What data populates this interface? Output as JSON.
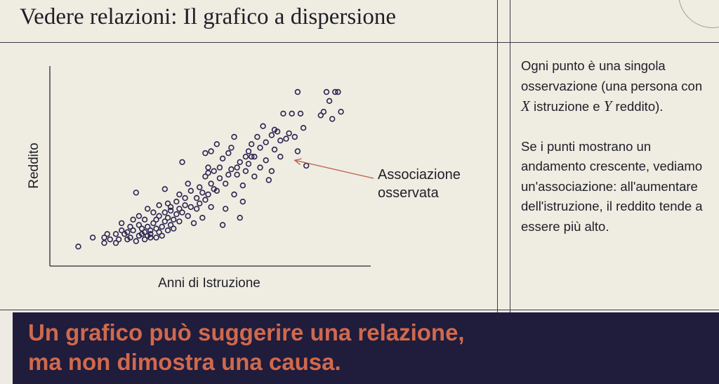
{
  "slide": {
    "title": "Vedere relazioni: Il grafico a dispersione",
    "side_paragraph_1": {
      "part1": "Ogni punto è una singola osservazione (una persona con ",
      "var_x": "X",
      "part2": " istruzione e ",
      "var_y": "Y",
      "part3": " reddito)."
    },
    "side_paragraph_2": "Se i punti mostrano un andamento crescente, vediamo un'associazione: all'aumentare dell'istruzione, il reddito tende a essere più alto.",
    "banner_line_1": "Un grafico può suggerire una relazione,",
    "banner_line_2": "ma non dimostra una causa."
  },
  "colors": {
    "background": "#efece2",
    "point_stroke": "#2a2450",
    "arrow": "#b85c4a",
    "banner_bg": "#1f1c3c",
    "banner_text": "#d0694c"
  },
  "chart_data": {
    "type": "scatter",
    "xlabel": "Anni di Istruzione",
    "ylabel": "Reddito",
    "xlim": [
      0,
      100
    ],
    "ylim": [
      0,
      100
    ],
    "axis_ticks": false,
    "grid": false,
    "annotation": {
      "text_line_1": "Associazione",
      "text_line_2": "osservata",
      "points_to": [
        80,
        53
      ]
    },
    "points": [
      [
        5,
        5
      ],
      [
        10,
        10
      ],
      [
        14,
        10
      ],
      [
        14,
        7
      ],
      [
        15,
        12
      ],
      [
        16,
        9
      ],
      [
        18,
        12
      ],
      [
        18,
        7
      ],
      [
        19,
        9
      ],
      [
        20,
        18
      ],
      [
        20,
        14
      ],
      [
        21,
        12
      ],
      [
        22,
        9
      ],
      [
        22,
        13
      ],
      [
        23,
        16
      ],
      [
        23,
        10
      ],
      [
        24,
        20
      ],
      [
        24,
        14
      ],
      [
        25,
        8
      ],
      [
        25,
        35
      ],
      [
        26,
        11
      ],
      [
        26,
        17
      ],
      [
        26,
        22
      ],
      [
        27,
        12
      ],
      [
        27,
        15
      ],
      [
        28,
        9
      ],
      [
        28,
        20
      ],
      [
        28,
        13
      ],
      [
        29,
        11
      ],
      [
        29,
        26
      ],
      [
        29,
        16
      ],
      [
        30,
        10
      ],
      [
        30,
        14
      ],
      [
        30,
        12
      ],
      [
        31,
        18
      ],
      [
        31,
        24
      ],
      [
        32,
        15
      ],
      [
        32,
        10
      ],
      [
        32,
        20
      ],
      [
        33,
        13
      ],
      [
        33,
        22
      ],
      [
        33,
        28
      ],
      [
        34,
        16
      ],
      [
        34,
        11
      ],
      [
        35,
        24
      ],
      [
        35,
        19
      ],
      [
        35,
        37
      ],
      [
        36,
        14
      ],
      [
        36,
        21
      ],
      [
        36,
        29
      ],
      [
        37,
        17
      ],
      [
        37,
        25
      ],
      [
        37,
        27
      ],
      [
        38,
        20
      ],
      [
        38,
        15
      ],
      [
        39,
        30
      ],
      [
        39,
        23
      ],
      [
        40,
        26
      ],
      [
        40,
        19
      ],
      [
        40,
        34
      ],
      [
        41,
        24
      ],
      [
        41,
        52
      ],
      [
        42,
        28
      ],
      [
        42,
        32
      ],
      [
        43,
        22
      ],
      [
        43,
        40
      ],
      [
        44,
        27
      ],
      [
        44,
        36
      ],
      [
        45,
        18
      ],
      [
        46,
        26
      ],
      [
        46,
        32
      ],
      [
        47,
        29
      ],
      [
        47,
        38
      ],
      [
        48,
        35
      ],
      [
        48,
        21
      ],
      [
        49,
        44
      ],
      [
        49,
        31
      ],
      [
        49,
        57
      ],
      [
        50,
        34
      ],
      [
        50,
        46
      ],
      [
        50,
        49
      ],
      [
        51,
        40
      ],
      [
        51,
        27
      ],
      [
        51,
        58
      ],
      [
        52,
        37
      ],
      [
        52,
        47
      ],
      [
        53,
        36
      ],
      [
        53,
        62
      ],
      [
        54,
        43
      ],
      [
        54,
        49
      ],
      [
        55,
        17
      ],
      [
        55,
        54
      ],
      [
        56,
        40
      ],
      [
        56,
        26
      ],
      [
        57,
        57
      ],
      [
        57,
        45
      ],
      [
        58,
        48
      ],
      [
        58,
        60
      ],
      [
        59,
        34
      ],
      [
        59,
        66
      ],
      [
        60,
        45
      ],
      [
        60,
        49
      ],
      [
        61,
        52
      ],
      [
        61,
        21
      ],
      [
        62,
        30
      ],
      [
        62,
        39
      ],
      [
        63,
        55
      ],
      [
        63,
        47
      ],
      [
        64,
        58
      ],
      [
        64,
        51
      ],
      [
        65,
        62
      ],
      [
        65,
        55
      ],
      [
        66,
        44
      ],
      [
        66,
        55
      ],
      [
        67,
        66
      ],
      [
        68,
        49
      ],
      [
        68,
        60
      ],
      [
        69,
        72
      ],
      [
        70,
        53
      ],
      [
        70,
        63
      ],
      [
        71,
        42
      ],
      [
        72,
        47
      ],
      [
        72,
        67
      ],
      [
        73,
        59
      ],
      [
        73,
        70
      ],
      [
        74,
        69
      ],
      [
        75,
        64
      ],
      [
        75,
        55
      ],
      [
        76,
        79
      ],
      [
        77,
        65
      ],
      [
        78,
        68
      ],
      [
        79,
        79
      ],
      [
        80,
        66
      ],
      [
        81,
        58
      ],
      [
        81,
        91
      ],
      [
        82,
        79
      ],
      [
        83,
        71
      ],
      [
        84,
        50
      ],
      [
        89,
        78
      ],
      [
        90,
        80
      ],
      [
        91,
        91
      ],
      [
        92,
        86
      ],
      [
        93,
        76
      ],
      [
        94,
        91
      ],
      [
        95,
        91
      ],
      [
        96,
        80
      ]
    ]
  }
}
